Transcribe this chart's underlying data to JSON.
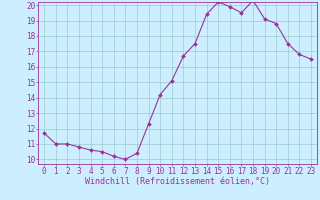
{
  "x": [
    0,
    1,
    2,
    3,
    4,
    5,
    6,
    7,
    8,
    9,
    10,
    11,
    12,
    13,
    14,
    15,
    16,
    17,
    18,
    19,
    20,
    21,
    22,
    23
  ],
  "y": [
    11.7,
    11.0,
    11.0,
    10.8,
    10.6,
    10.5,
    10.2,
    10.0,
    10.4,
    12.3,
    14.2,
    15.1,
    16.7,
    17.5,
    19.4,
    20.2,
    19.9,
    19.5,
    20.3,
    19.1,
    18.8,
    17.5,
    16.8,
    16.5
  ],
  "line_color": "#993399",
  "marker": "D",
  "marker_size": 2.0,
  "line_width": 0.8,
  "bg_color": "#cceeff",
  "grid_color": "#99cccc",
  "xlabel": "Windchill (Refroidissement éolien,°C)",
  "xlabel_color": "#993399",
  "xlabel_fontsize": 6.0,
  "tick_color": "#993399",
  "tick_fontsize": 5.5,
  "ylim": [
    10,
    20
  ],
  "xlim": [
    0,
    23
  ],
  "yticks": [
    10,
    11,
    12,
    13,
    14,
    15,
    16,
    17,
    18,
    19,
    20
  ],
  "xticks": [
    0,
    1,
    2,
    3,
    4,
    5,
    6,
    7,
    8,
    9,
    10,
    11,
    12,
    13,
    14,
    15,
    16,
    17,
    18,
    19,
    20,
    21,
    22,
    23
  ]
}
